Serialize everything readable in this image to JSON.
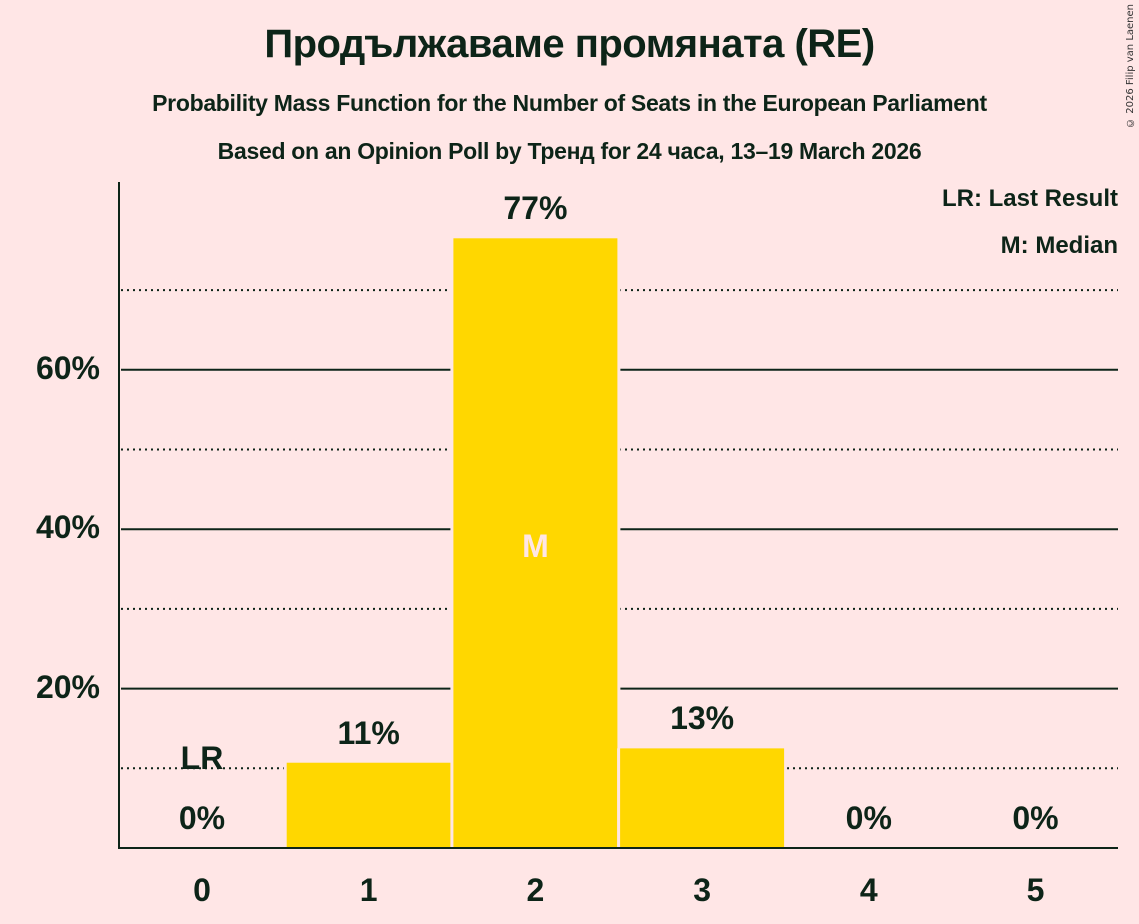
{
  "header": {
    "title": "Продължаваме промяната (RE)",
    "subtitle": "Probability Mass Function for the Number of Seats in the European Parliament",
    "source_line": "Based on an Opinion Poll by Тренд for 24 часа, 13–19 March 2026",
    "copyright": "© 2026 Filip van Laenen"
  },
  "legend": {
    "last_result": "LR: Last Result",
    "median": "M: Median"
  },
  "markers": {
    "last_result_label": "LR",
    "median_label": "M"
  },
  "y_ticks": [
    {
      "value": 20,
      "label": "20%"
    },
    {
      "value": 40,
      "label": "40%"
    },
    {
      "value": 60,
      "label": "60%"
    }
  ],
  "bars": [
    {
      "seats": "0",
      "value": 0,
      "label": "0%"
    },
    {
      "seats": "1",
      "value": 10.7,
      "label": "11%"
    },
    {
      "seats": "2",
      "value": 76.5,
      "label": "77%"
    },
    {
      "seats": "3",
      "value": 12.5,
      "label": "13%"
    },
    {
      "seats": "4",
      "value": 0,
      "label": "0%"
    },
    {
      "seats": "5",
      "value": 0,
      "label": "0%"
    }
  ],
  "colors": {
    "background": "#FFE6E6",
    "bar": "#FFD700",
    "text": "#0D2418",
    "axis": "#0D2418"
  },
  "chart_data": {
    "type": "bar",
    "title": "Продължаваме промяната (RE)",
    "subtitle": "Probability Mass Function for the Number of Seats in the European Parliament",
    "caption": "Based on an Opinion Poll by Тренд for 24 часа, 13–19 March 2026",
    "xlabel": "",
    "ylabel": "",
    "categories": [
      "0",
      "1",
      "2",
      "3",
      "4",
      "5"
    ],
    "values": [
      0,
      10.7,
      76.5,
      12.5,
      0,
      0
    ],
    "data_labels": [
      "0%",
      "11%",
      "77%",
      "13%",
      "0%",
      "0%"
    ],
    "ylim": [
      0,
      83
    ],
    "y_ticks": [
      20,
      40,
      60
    ],
    "y_tick_labels": [
      "20%",
      "40%",
      "60%"
    ],
    "grid": {
      "major": [
        20,
        40,
        60
      ],
      "minor_dotted": [
        10,
        30,
        50,
        70
      ]
    },
    "annotations": [
      {
        "category": "0",
        "text": "LR",
        "meaning": "Last Result"
      },
      {
        "category": "2",
        "text": "M",
        "meaning": "Median"
      }
    ],
    "legend": [
      "LR: Last Result",
      "M: Median"
    ],
    "legend_position": "top-right"
  }
}
